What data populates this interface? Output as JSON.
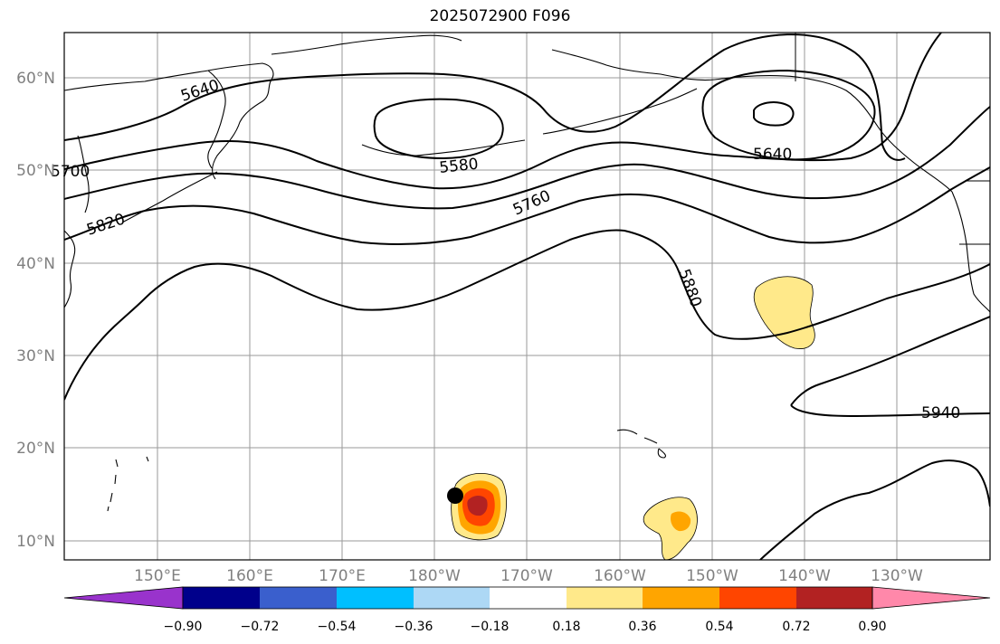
{
  "title": "2025072900 F096",
  "map": {
    "lat_labels": [
      "60°N",
      "50°N",
      "40°N",
      "30°N",
      "20°N",
      "10°N"
    ],
    "lon_labels": [
      "150°E",
      "160°E",
      "170°E",
      "180°W",
      "170°W",
      "160°W",
      "150°W",
      "140°W",
      "130°W"
    ],
    "gridlines": true,
    "contour_labels": [
      "5640",
      "5580",
      "5640",
      "5700",
      "5760",
      "5820",
      "5880",
      "5940"
    ],
    "contour_color": "#000000",
    "marker": {
      "type": "filled-circle",
      "color": "#000000",
      "lat": 14.8,
      "lon": -177.7
    }
  },
  "colorbar": {
    "tick_labels": [
      "−0.90",
      "−0.72",
      "−0.54",
      "−0.36",
      "−0.18",
      "0.18",
      "0.36",
      "0.54",
      "0.72",
      "0.90"
    ],
    "colors": [
      "#9933cc",
      "#00008b",
      "#3a5fcd",
      "#00bfff",
      "#add8f5",
      "#ffffff",
      "#ffe98a",
      "#ffa500",
      "#ff4500",
      "#b22222",
      "#ff88aa"
    ],
    "extend": "both"
  }
}
